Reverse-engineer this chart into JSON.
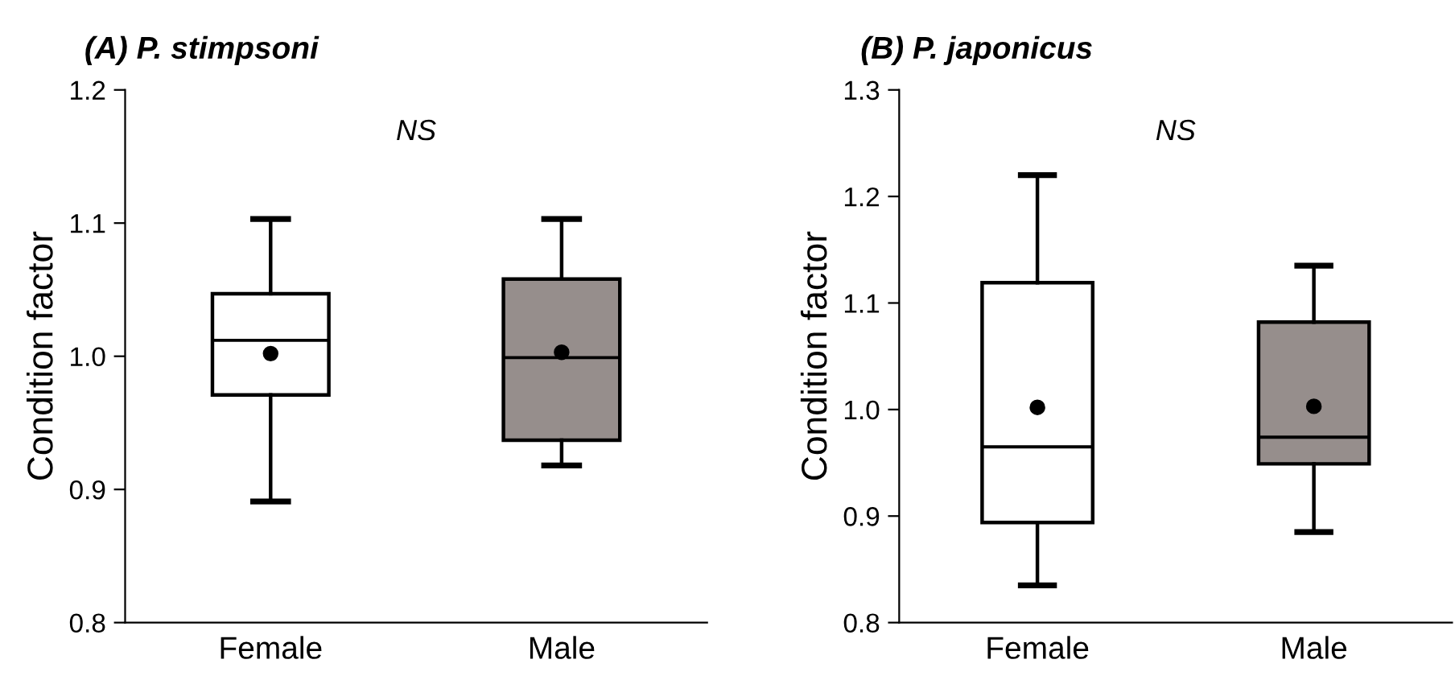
{
  "chart_data": [
    {
      "type": "box",
      "title": "(A) P. stimpsoni",
      "ylabel": "Condition factor",
      "categories": [
        "Female",
        "Male"
      ],
      "colors": [
        "#ffffff",
        "#968e8c"
      ],
      "boxes": [
        {
          "low": 0.891,
          "q1": 0.971,
          "median": 1.012,
          "q3": 1.047,
          "high": 1.103,
          "mean": 1.002
        },
        {
          "low": 0.918,
          "q1": 0.937,
          "median": 0.999,
          "q3": 1.058,
          "high": 1.103,
          "mean": 1.003
        }
      ],
      "ylim": [
        0.8,
        1.2
      ],
      "yticks": [
        {
          "value": 0.8,
          "label": "0.8"
        },
        {
          "value": 0.9,
          "label": "0.9"
        },
        {
          "value": 1.0,
          "label": "1.0"
        },
        {
          "value": 1.1,
          "label": "1.1"
        },
        {
          "value": 1.2,
          "label": "1.2"
        }
      ],
      "annotations": [
        "NS"
      ],
      "grid": false,
      "legend": false
    },
    {
      "type": "box",
      "title": "(B) P. japonicus",
      "ylabel": "Condition factor",
      "categories": [
        "Female",
        "Male"
      ],
      "colors": [
        "#ffffff",
        "#968e8c"
      ],
      "boxes": [
        {
          "low": 0.835,
          "q1": 0.894,
          "median": 0.965,
          "q3": 1.119,
          "high": 1.22,
          "mean": 1.002
        },
        {
          "low": 0.885,
          "q1": 0.949,
          "median": 0.974,
          "q3": 1.082,
          "high": 1.135,
          "mean": 1.003
        }
      ],
      "ylim": [
        0.8,
        1.3
      ],
      "yticks": [
        {
          "value": 0.8,
          "label": "0.8"
        },
        {
          "value": 0.9,
          "label": "0.9"
        },
        {
          "value": 1.0,
          "label": "1.0"
        },
        {
          "value": 1.1,
          "label": "1.1"
        },
        {
          "value": 1.2,
          "label": "1.2"
        },
        {
          "value": 1.3,
          "label": "1.3"
        }
      ],
      "annotations": [
        "NS"
      ],
      "grid": false,
      "legend": false
    }
  ]
}
